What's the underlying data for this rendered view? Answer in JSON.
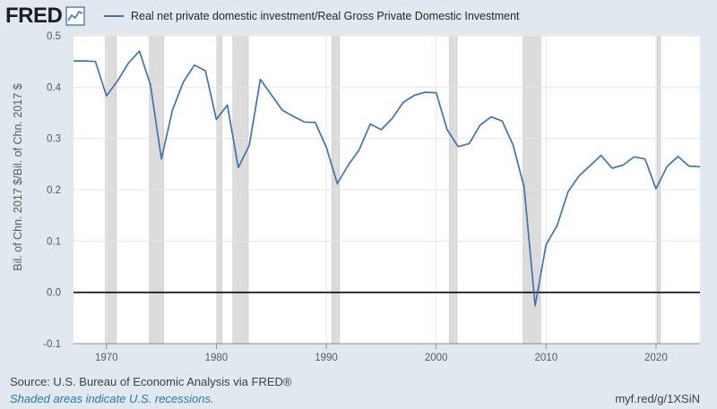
{
  "header": {
    "logo_text": "FRED",
    "logo_icon": "chart-line-icon"
  },
  "legend": {
    "series_label": "Real net private domestic investment/Real Gross Private Domestic Investment",
    "series_color": "#4572a7"
  },
  "footer": {
    "source": "Source: U.S. Bureau of Economic Analysis via FRED®",
    "note": "Shaded areas indicate U.S. recessions.",
    "url": "myf.red/g/1XSiN"
  },
  "colors": {
    "background": "#e1e9f0",
    "plot_background": "#ffffff",
    "line": "#4572a7",
    "recession": "#dcdcdc",
    "zero_line": "#000000",
    "note_text": "#2a73b8"
  },
  "chart_data": {
    "type": "line",
    "title": "",
    "xlabel": "",
    "ylabel": "Bil. of Chn. 2017 $/Bil. of Chn. 2017 $",
    "xlim": [
      1967,
      2024
    ],
    "ylim": [
      -0.1,
      0.5
    ],
    "x_ticks": [
      1970,
      1980,
      1990,
      2000,
      2010,
      2020
    ],
    "y_ticks": [
      -0.1,
      0.0,
      0.1,
      0.2,
      0.3,
      0.4,
      0.5
    ],
    "y_tick_labels": [
      "-0.1",
      "0.0",
      "0.1",
      "0.2",
      "0.3",
      "0.4",
      "0.5"
    ],
    "grid": true,
    "legend_position": "top",
    "recessions": [
      [
        1969.9,
        1970.9
      ],
      [
        1973.9,
        1975.2
      ],
      [
        1980.0,
        1980.5
      ],
      [
        1981.5,
        1982.9
      ],
      [
        1990.5,
        1991.2
      ],
      [
        2001.2,
        2001.9
      ],
      [
        2007.9,
        2009.5
      ],
      [
        2020.1,
        2020.4
      ]
    ],
    "series": [
      {
        "name": "Real net private domestic investment/Real Gross Private Domestic Investment",
        "x": [
          1967,
          1968,
          1969,
          1970,
          1971,
          1972,
          1973,
          1974,
          1975,
          1976,
          1977,
          1978,
          1979,
          1980,
          1981,
          1982,
          1983,
          1984,
          1985,
          1986,
          1987,
          1988,
          1989,
          1990,
          1991,
          1992,
          1993,
          1994,
          1995,
          1996,
          1997,
          1998,
          1999,
          2000,
          2001,
          2002,
          2003,
          2004,
          2005,
          2006,
          2007,
          2008,
          2009,
          2010,
          2011,
          2012,
          2013,
          2014,
          2015,
          2016,
          2017,
          2018,
          2019,
          2020,
          2021,
          2022,
          2023,
          2024
        ],
        "values": [
          0.451,
          0.451,
          0.45,
          0.383,
          0.412,
          0.447,
          0.47,
          0.405,
          0.26,
          0.355,
          0.41,
          0.443,
          0.432,
          0.337,
          0.365,
          0.243,
          0.287,
          0.415,
          0.385,
          0.355,
          0.343,
          0.332,
          0.331,
          0.283,
          0.212,
          0.248,
          0.278,
          0.328,
          0.317,
          0.339,
          0.37,
          0.384,
          0.39,
          0.389,
          0.317,
          0.284,
          0.29,
          0.326,
          0.342,
          0.334,
          0.287,
          0.205,
          -0.026,
          0.093,
          0.13,
          0.196,
          0.227,
          0.247,
          0.267,
          0.242,
          0.248,
          0.264,
          0.26,
          0.202,
          0.245,
          0.265,
          0.246,
          0.245
        ]
      }
    ]
  }
}
